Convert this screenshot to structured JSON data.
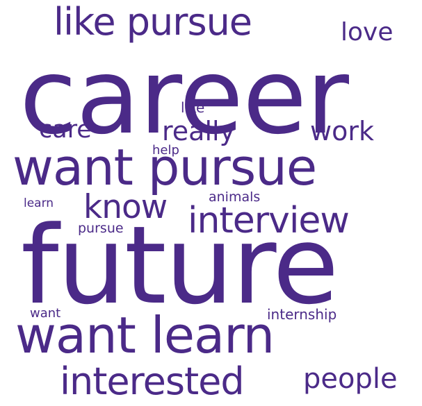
{
  "word_cloud": {
    "color": "#4b2a88",
    "background": "#ffffff",
    "words": {
      "career": "career",
      "future": "future",
      "want_pursue": "want pursue",
      "want_learn": "want learn",
      "like_pursue": "like pursue",
      "interview": "interview",
      "interested": "interested",
      "know": "know",
      "people": "people",
      "really": "really",
      "work": "work",
      "care": "care",
      "love": "love",
      "like": "like",
      "help": "help",
      "animals": "animals",
      "learn": "learn",
      "pursue": "pursue",
      "want": "want",
      "internship": "internship"
    }
  }
}
